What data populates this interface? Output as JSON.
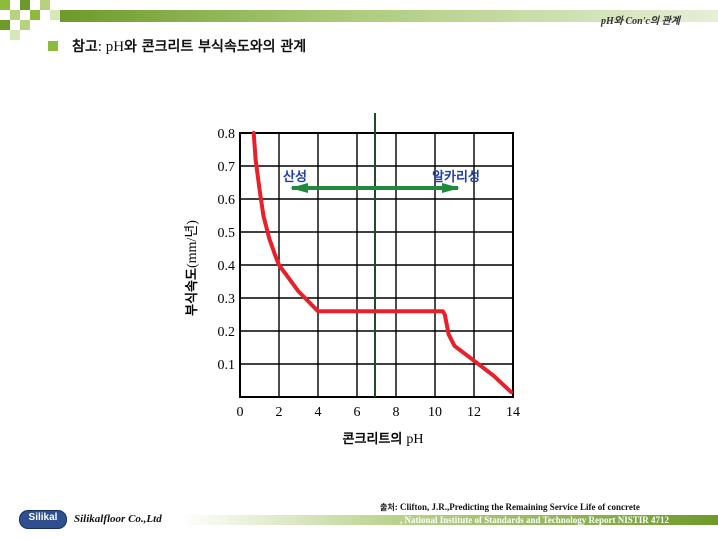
{
  "header": {
    "title": "pH와 Con'c의 관계"
  },
  "slide": {
    "title_prefix": "참고",
    "title_sep": ": ",
    "title_ph": "pH",
    "title_rest": "와 콘크리트 부식속도와의 관계"
  },
  "chart_data": {
    "type": "line",
    "xlabel_kr": "콘크리트의",
    "xlabel_unit": "pH",
    "ylabel_kr": "부식속도",
    "ylabel_unit": "(mm/년)",
    "xlim": [
      0,
      14
    ],
    "ylim": [
      0,
      0.8
    ],
    "x_ticks": [
      "0",
      "2",
      "4",
      "6",
      "8",
      "10",
      "12",
      "14"
    ],
    "y_ticks": [
      "0.1",
      "0.2",
      "0.3",
      "0.4",
      "0.5",
      "0.6",
      "0.7",
      "0.8"
    ],
    "grid": true,
    "neutral_line_x": 7,
    "series": [
      {
        "color": "#e8202a",
        "x": [
          0.7,
          0.8,
          1.0,
          1.2,
          1.5,
          1.8,
          2.0,
          2.5,
          3.0,
          3.5,
          4.0,
          6.0,
          8.0,
          10.0,
          10.3,
          10.4,
          10.5,
          10.7,
          11.0,
          12.0,
          13.0,
          13.9
        ],
        "y": [
          0.8,
          0.72,
          0.63,
          0.55,
          0.48,
          0.43,
          0.4,
          0.36,
          0.32,
          0.29,
          0.26,
          0.26,
          0.26,
          0.26,
          0.26,
          0.26,
          0.25,
          0.19,
          0.155,
          0.11,
          0.065,
          0.015
        ]
      }
    ],
    "annotations": {
      "acid_label": "산성",
      "alkali_label": "알카리성",
      "arrow_color": "#1f8a3c",
      "label_color": "#1f3fa8"
    }
  },
  "source": {
    "label": "출처",
    "line1": ": Clifton, J.R.,Predicting the Remaining Service Life of concrete",
    "line2": ", National Institute of Standards and Technology Report NISTIR 4712"
  },
  "footer": {
    "logo": "Silikal",
    "company": "Silikalfloor Co.,Ltd"
  },
  "colors": {
    "accent": "#8dbb3e",
    "dark_green": "#6d9a2a"
  }
}
